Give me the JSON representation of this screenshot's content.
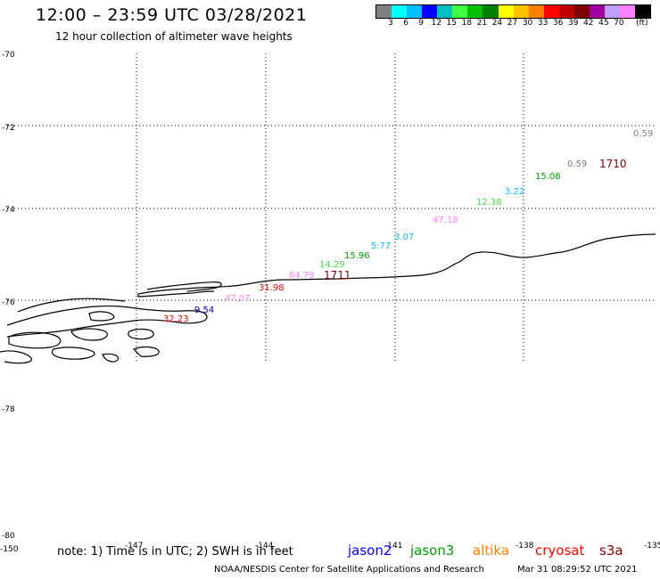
{
  "title": "12:00 – 23:59 UTC 03/28/2021",
  "subtitle": "12 hour collection of altimeter wave heights",
  "legend": {
    "colors": [
      "#808080",
      "#00ffff",
      "#00bfff",
      "#0000ff",
      "#00c0c0",
      "#40ff40",
      "#00c000",
      "#008000",
      "#ffff00",
      "#ffc000",
      "#ff8000",
      "#ff0000",
      "#c00000",
      "#800000",
      "#a000a0",
      "#c0a0ff",
      "#ff80ff",
      "#000000"
    ],
    "labels": [
      "3",
      "6",
      "9",
      "12",
      "15",
      "18",
      "21",
      "24",
      "27",
      "30",
      "33",
      "36",
      "39",
      "42",
      "45",
      "70"
    ],
    "unit": "(ft)"
  },
  "lat_labels": [
    "-70",
    "-72",
    "-74",
    "-76",
    "-78",
    "-80"
  ],
  "lon_labels": [
    "-150",
    "-147",
    "-144",
    "-141",
    "-138",
    "-135"
  ],
  "wave_heights": [
    {
      "text": "0.59",
      "color": "#808080"
    },
    {
      "text": "0.59",
      "color": "#808080"
    },
    {
      "text": "1710",
      "color": "#800000"
    },
    {
      "text": "15.08",
      "color": "#00a000"
    },
    {
      "text": "3.22",
      "color": "#00bfff"
    },
    {
      "text": "12.38",
      "color": "#40e040"
    },
    {
      "text": "47.18",
      "color": "#ff80ff"
    },
    {
      "text": "3.07",
      "color": "#00bfff"
    },
    {
      "text": "5.77",
      "color": "#00bfff"
    },
    {
      "text": "15.96",
      "color": "#00a000"
    },
    {
      "text": "14.29",
      "color": "#40e040"
    },
    {
      "text": "64.79",
      "color": "#ff80ff"
    },
    {
      "text": "1711",
      "color": "#800000"
    },
    {
      "text": "31.98",
      "color": "#ff0000"
    },
    {
      "text": "47.07",
      "color": "#ff80ff"
    },
    {
      "text": "9.54",
      "color": "#0000c0"
    },
    {
      "text": "32.23",
      "color": "#ff0000"
    }
  ],
  "note": "note:  1) Time is in UTC;  2) SWH is in feet",
  "satellites": [
    {
      "name": "jason2",
      "color": "#0000ff"
    },
    {
      "name": "jason3",
      "color": "#00a000"
    },
    {
      "name": "altika",
      "color": "#ff8000"
    },
    {
      "name": "cryosat",
      "color": "#ff0000"
    },
    {
      "name": "s3a",
      "color": "#800000"
    }
  ],
  "credit": "NOAA/NESDIS Center for Satellite Applications and Research",
  "credit_time": "Mar 31 08:29:52 UTC 2021"
}
